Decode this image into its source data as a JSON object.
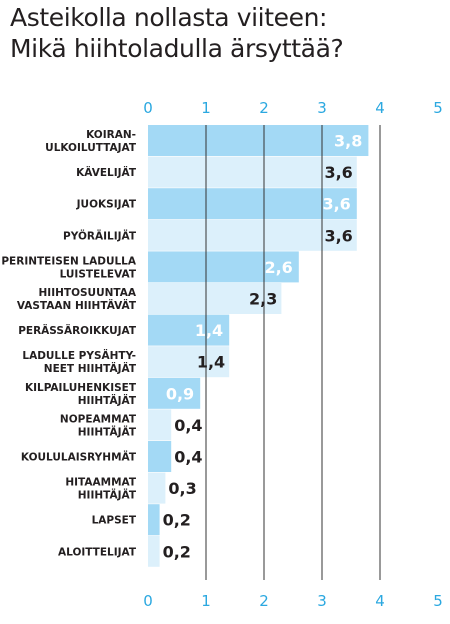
{
  "header": {
    "title_line1": "Asteikolla nollasta viiteen:",
    "title_line2": "Mikä hiihtoladulla ärsyttää?"
  },
  "colors": {
    "bar_dark": "#a3d9f5",
    "bar_light": "#dcf0fb",
    "axis_text": "#2ba8e0",
    "text": "#231f20",
    "grid": "#333333"
  },
  "chart_data": {
    "type": "bar",
    "orientation": "horizontal",
    "title": "Asteikolla nollasta viiteen: Mikä hiihtoladulla ärsyttää?",
    "xlim": [
      0,
      5
    ],
    "xticks": [
      "0",
      "1",
      "2",
      "3",
      "4",
      "5"
    ],
    "tick_positions": "top and bottom",
    "grid": true,
    "categories": [
      [
        "KOIRAN-",
        "ULKOILUTTAJAT"
      ],
      [
        "KÄVELIJÄT"
      ],
      [
        "JUOKSIJAT"
      ],
      [
        "PYÖRÄILIJÄT"
      ],
      [
        "PERINTEISEN LADULLA",
        "LUISTELEVAT"
      ],
      [
        "HIIHTOSUUNTAA",
        "VASTAAN HIIHTÄVÄT"
      ],
      [
        "PERÄSSÄROIKKUJAT"
      ],
      [
        "LADULLE PYSÄHTY-",
        "NEET HIIHTÄJÄT"
      ],
      [
        "KILPAILUHENKISET",
        "HIIHTÄJÄT"
      ],
      [
        "NOPEAMMAT",
        "HIIHTÄJÄT"
      ],
      [
        "KOULULAISRYHMÄT"
      ],
      [
        "HITAAMMAT",
        "HIIHTÄJÄT"
      ],
      [
        "LAPSET"
      ],
      [
        "ALOITTELIJAT"
      ]
    ],
    "values": [
      3.8,
      3.6,
      3.6,
      3.6,
      2.6,
      2.3,
      1.4,
      1.4,
      0.9,
      0.4,
      0.4,
      0.3,
      0.2,
      0.2
    ],
    "value_labels": [
      "3,8",
      "3,6",
      "3,6",
      "3,6",
      "2,6",
      "2,3",
      "1,4",
      "1,4",
      "0,9",
      "0,4",
      "0,4",
      "0,3",
      "0,2",
      "0,2"
    ]
  }
}
